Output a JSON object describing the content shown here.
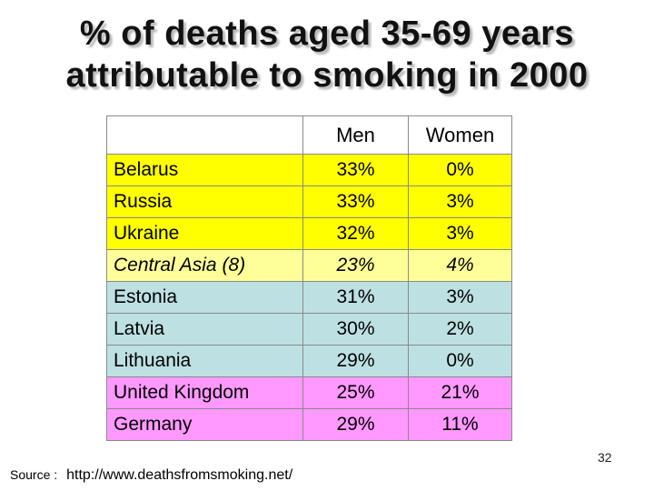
{
  "title": {
    "line1": "% of deaths aged 35-69 years",
    "line2": "attributable to smoking in 2000"
  },
  "table": {
    "headers": [
      "",
      "Men",
      "Women"
    ],
    "rows": [
      {
        "country": "Belarus",
        "men": "33%",
        "women": "0%",
        "color": "#ffff00",
        "italic": false
      },
      {
        "country": "Russia",
        "men": "33%",
        "women": "3%",
        "color": "#ffff00",
        "italic": false
      },
      {
        "country": "Ukraine",
        "men": "32%",
        "women": "3%",
        "color": "#ffff00",
        "italic": false
      },
      {
        "country": "Central Asia (8)",
        "men": "23%",
        "women": "4%",
        "color": "#ffff99",
        "italic": true
      },
      {
        "country": "Estonia",
        "men": "31%",
        "women": "3%",
        "color": "#bde0e2",
        "italic": false
      },
      {
        "country": "Latvia",
        "men": "30%",
        "women": "2%",
        "color": "#bde0e2",
        "italic": false
      },
      {
        "country": "Lithuania",
        "men": "29%",
        "women": "0%",
        "color": "#bde0e2",
        "italic": false
      },
      {
        "country": "United Kingdom",
        "men": "25%",
        "women": "21%",
        "color": "#ff99ff",
        "italic": false
      },
      {
        "country": "Germany",
        "men": "29%",
        "women": "11%",
        "color": "#ff99ff",
        "italic": false
      }
    ]
  },
  "page_number": "32",
  "source": {
    "label": "Source :",
    "url": "http://www.deathsfromsmoking.net/"
  }
}
